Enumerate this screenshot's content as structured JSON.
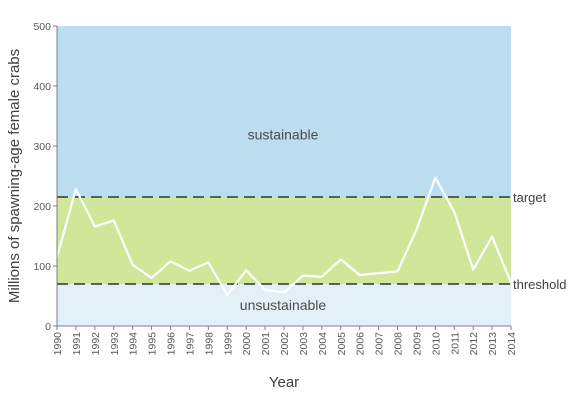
{
  "chart_data": {
    "type": "line",
    "title": "",
    "xlabel": "Year",
    "ylabel": "Millions of spawning-age female crabs",
    "xlim": [
      1990,
      2014
    ],
    "ylim": [
      0,
      500
    ],
    "yticks": [
      "0",
      "100",
      "200",
      "300",
      "400",
      "500"
    ],
    "xticks": [
      "1990",
      "1991",
      "1992",
      "1993",
      "1994",
      "1995",
      "1996",
      "1997",
      "1998",
      "1999",
      "2000",
      "2001",
      "2002",
      "2003",
      "2004",
      "2005",
      "2006",
      "2007",
      "2008",
      "2009",
      "2010",
      "2011",
      "2012",
      "2013",
      "2014"
    ],
    "x": [
      1990,
      1991,
      1992,
      1993,
      1994,
      1995,
      1996,
      1997,
      1998,
      1999,
      2000,
      2001,
      2002,
      2003,
      2004,
      2005,
      2006,
      2007,
      2008,
      2009,
      2010,
      2011,
      2012,
      2013,
      2014
    ],
    "values": [
      115,
      228,
      166,
      176,
      102,
      80,
      108,
      92,
      106,
      52,
      93,
      60,
      56,
      84,
      82,
      111,
      85,
      88,
      91,
      160,
      247,
      190,
      94,
      149,
      72
    ],
    "line_color": "#ffffff",
    "zones": [
      {
        "label": "sustainable",
        "from": 215,
        "to": 500,
        "color": "#bcdcef"
      },
      {
        "label": "",
        "from": 70,
        "to": 215,
        "color": "#d0e699"
      },
      {
        "label": "unsustainable",
        "from": 0,
        "to": 70,
        "color": "#e4f0f8"
      }
    ],
    "reference_lines": [
      {
        "label": "target",
        "value": 215
      },
      {
        "label": "threshold",
        "value": 70
      }
    ],
    "grid": false,
    "legend": "none"
  }
}
